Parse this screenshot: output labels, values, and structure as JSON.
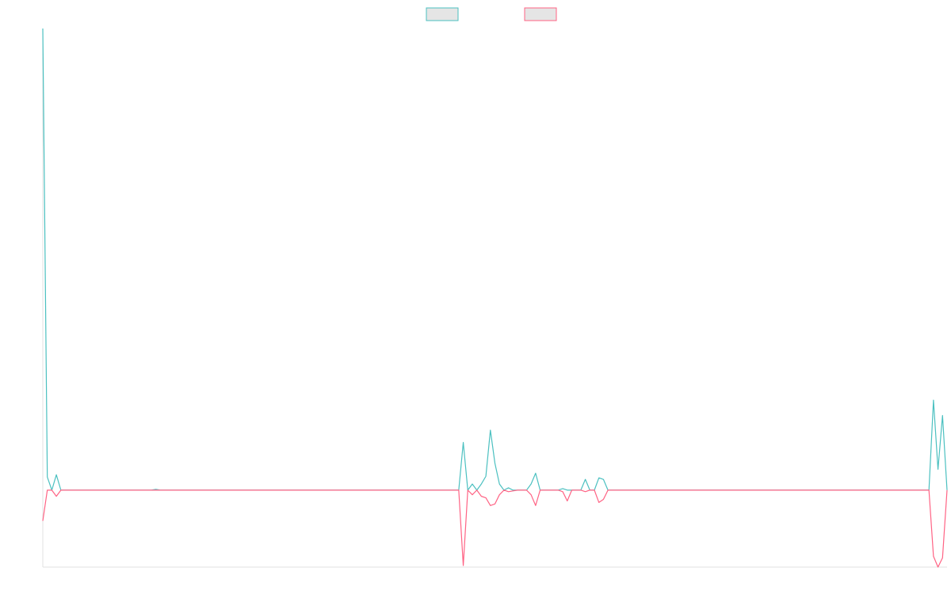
{
  "chart_data": {
    "type": "line",
    "title": "",
    "xlabel": "",
    "ylabel": "",
    "ylim": [
      -100,
      600
    ],
    "grid": false,
    "legend_position": "top-center",
    "x": [
      0,
      1,
      2,
      3,
      4,
      5,
      6,
      7,
      8,
      9,
      10,
      11,
      12,
      13,
      14,
      15,
      16,
      17,
      18,
      19,
      20,
      21,
      22,
      23,
      24,
      25,
      26,
      27,
      28,
      29,
      30,
      31,
      32,
      33,
      34,
      35,
      36,
      37,
      38,
      39,
      40,
      41,
      42,
      43,
      44,
      45,
      46,
      47,
      48,
      49,
      50,
      51,
      52,
      53,
      54,
      55,
      56,
      57,
      58,
      59,
      60,
      61,
      62,
      63,
      64,
      65,
      66,
      67,
      68,
      69,
      70,
      71,
      72,
      73,
      74,
      75,
      76,
      77,
      78,
      79,
      80,
      81,
      82,
      83,
      84,
      85,
      86,
      87,
      88,
      89,
      90,
      91,
      92,
      93,
      94,
      95,
      96,
      97,
      98,
      99,
      100,
      101,
      102,
      103,
      104,
      105,
      106,
      107,
      108,
      109,
      110,
      111,
      112,
      113,
      114,
      115,
      116,
      117,
      118,
      119,
      120,
      121,
      122,
      123,
      124,
      125,
      126,
      127,
      128,
      129,
      130,
      131,
      132,
      133,
      134,
      135,
      136,
      137,
      138,
      139,
      140,
      141,
      142,
      143,
      144,
      145,
      146,
      147,
      148,
      149,
      150,
      151,
      152,
      153,
      154,
      155,
      156,
      157,
      158,
      159,
      160,
      161,
      162,
      163,
      164,
      165,
      166,
      167,
      168,
      169,
      170,
      171,
      172,
      173,
      174,
      175,
      176,
      177,
      178,
      179,
      180,
      181,
      182,
      183,
      184,
      185,
      186,
      187,
      188,
      189,
      190,
      191,
      192,
      193,
      194,
      195,
      196,
      197,
      198,
      199,
      200
    ],
    "series": [
      {
        "name": "",
        "color": "#4bc0c0",
        "values": [
          600,
          17,
          0,
          20,
          0,
          0,
          0,
          0,
          0,
          0,
          0,
          0,
          0,
          0,
          0,
          0,
          0,
          0,
          0,
          0,
          0,
          0,
          0,
          0,
          0,
          1,
          0,
          0,
          0,
          0,
          0,
          0,
          0,
          0,
          0,
          0,
          0,
          0,
          0,
          0,
          0,
          0,
          0,
          0,
          0,
          0,
          0,
          0,
          0,
          0,
          0,
          0,
          0,
          0,
          0,
          0,
          0,
          0,
          0,
          0,
          0,
          0,
          0,
          0,
          0,
          0,
          0,
          0,
          0,
          0,
          0,
          0,
          0,
          0,
          0,
          0,
          0,
          0,
          0,
          0,
          0,
          0,
          0,
          0,
          0,
          0,
          0,
          0,
          0,
          0,
          0,
          0,
          0,
          62,
          0,
          8,
          0,
          8,
          18,
          78,
          35,
          8,
          0,
          3,
          0,
          0,
          0,
          0,
          8,
          22,
          0,
          0,
          0,
          0,
          0,
          2,
          0,
          0,
          0,
          0,
          14,
          0,
          0,
          16,
          14,
          0,
          0,
          0,
          0,
          0,
          0,
          0,
          0,
          0,
          0,
          0,
          0,
          0,
          0,
          0,
          0,
          0,
          0,
          0,
          0,
          0,
          0,
          0,
          0,
          0,
          0,
          0,
          0,
          0,
          0,
          0,
          0,
          0,
          0,
          0,
          0,
          0,
          0,
          0,
          0,
          0,
          0,
          0,
          0,
          0,
          0,
          0,
          0,
          0,
          0,
          0,
          0,
          0,
          0,
          0,
          0,
          0,
          0,
          0,
          0,
          0,
          0,
          0,
          0,
          0,
          0,
          0,
          0,
          0,
          0,
          0,
          0,
          117,
          27,
          97,
          0
        ]
      },
      {
        "name": "",
        "color": "#ff6384",
        "values": [
          -40,
          0,
          0,
          -8,
          0,
          0,
          0,
          0,
          0,
          0,
          0,
          0,
          0,
          0,
          0,
          0,
          0,
          0,
          0,
          0,
          0,
          0,
          0,
          0,
          0,
          0,
          0,
          0,
          0,
          0,
          0,
          0,
          0,
          0,
          0,
          0,
          0,
          0,
          0,
          0,
          0,
          0,
          0,
          0,
          0,
          0,
          0,
          0,
          0,
          0,
          0,
          0,
          0,
          0,
          0,
          0,
          0,
          0,
          0,
          0,
          0,
          0,
          0,
          0,
          0,
          0,
          0,
          0,
          0,
          0,
          0,
          0,
          0,
          0,
          0,
          0,
          0,
          0,
          0,
          0,
          0,
          0,
          0,
          0,
          0,
          0,
          0,
          0,
          0,
          0,
          0,
          0,
          0,
          -98,
          0,
          -6,
          0,
          -8,
          -10,
          -20,
          -18,
          -6,
          0,
          -2,
          -1,
          0,
          0,
          0,
          -6,
          -20,
          0,
          0,
          0,
          0,
          0,
          -2,
          -14,
          0,
          0,
          0,
          -2,
          0,
          0,
          -16,
          -12,
          0,
          0,
          0,
          0,
          0,
          0,
          0,
          0,
          0,
          0,
          0,
          0,
          0,
          0,
          0,
          0,
          0,
          0,
          0,
          0,
          0,
          0,
          0,
          0,
          0,
          0,
          0,
          0,
          0,
          0,
          0,
          0,
          0,
          0,
          0,
          0,
          0,
          0,
          0,
          0,
          0,
          0,
          0,
          0,
          0,
          0,
          0,
          0,
          0,
          0,
          0,
          0,
          0,
          0,
          0,
          0,
          0,
          0,
          0,
          0,
          0,
          0,
          0,
          0,
          0,
          0,
          0,
          0,
          0,
          0,
          0,
          0,
          -86,
          -100,
          -88,
          0
        ]
      }
    ]
  },
  "legend": {
    "fill": "#e5e5e5"
  }
}
